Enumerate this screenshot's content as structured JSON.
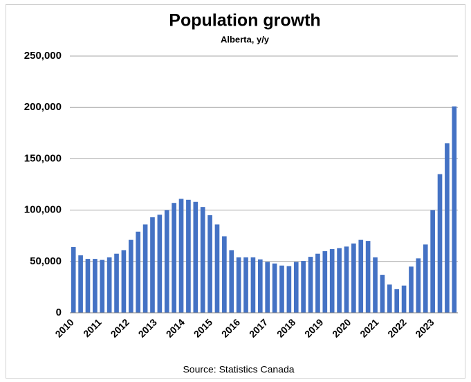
{
  "chart_data": {
    "type": "bar",
    "title": "Population growth",
    "subtitle": "Alberta, y/y",
    "source": "Source: Statistics Canada",
    "x_labels": [
      "2010",
      "2011",
      "2012",
      "2013",
      "2014",
      "2015",
      "2016",
      "2017",
      "2018",
      "2019",
      "2020",
      "2021",
      "2022",
      "2023"
    ],
    "values": [
      64000,
      56000,
      52500,
      52500,
      51500,
      54000,
      57500,
      61000,
      71000,
      79000,
      86000,
      93000,
      95500,
      100000,
      107000,
      111000,
      110000,
      108000,
      103000,
      95000,
      86000,
      74500,
      61000,
      54000,
      54000,
      54000,
      52000,
      49500,
      48000,
      46000,
      45500,
      49500,
      50500,
      54500,
      57500,
      60000,
      62000,
      63000,
      64500,
      67500,
      71000,
      70000,
      54000,
      37000,
      27500,
      23000,
      26500,
      45000,
      53000,
      66500,
      100000,
      135000,
      165000,
      201000
    ],
    "color": "#4472c4",
    "ylim": [
      0,
      250000
    ],
    "yticks": [
      {
        "value": 0,
        "label": "0"
      },
      {
        "value": 50000,
        "label": "50,000"
      },
      {
        "value": 100000,
        "label": "100,000"
      },
      {
        "value": 150000,
        "label": "150,000"
      },
      {
        "value": 200000,
        "label": "200,000"
      },
      {
        "value": 250000,
        "label": "250,000"
      }
    ],
    "grid": true
  }
}
